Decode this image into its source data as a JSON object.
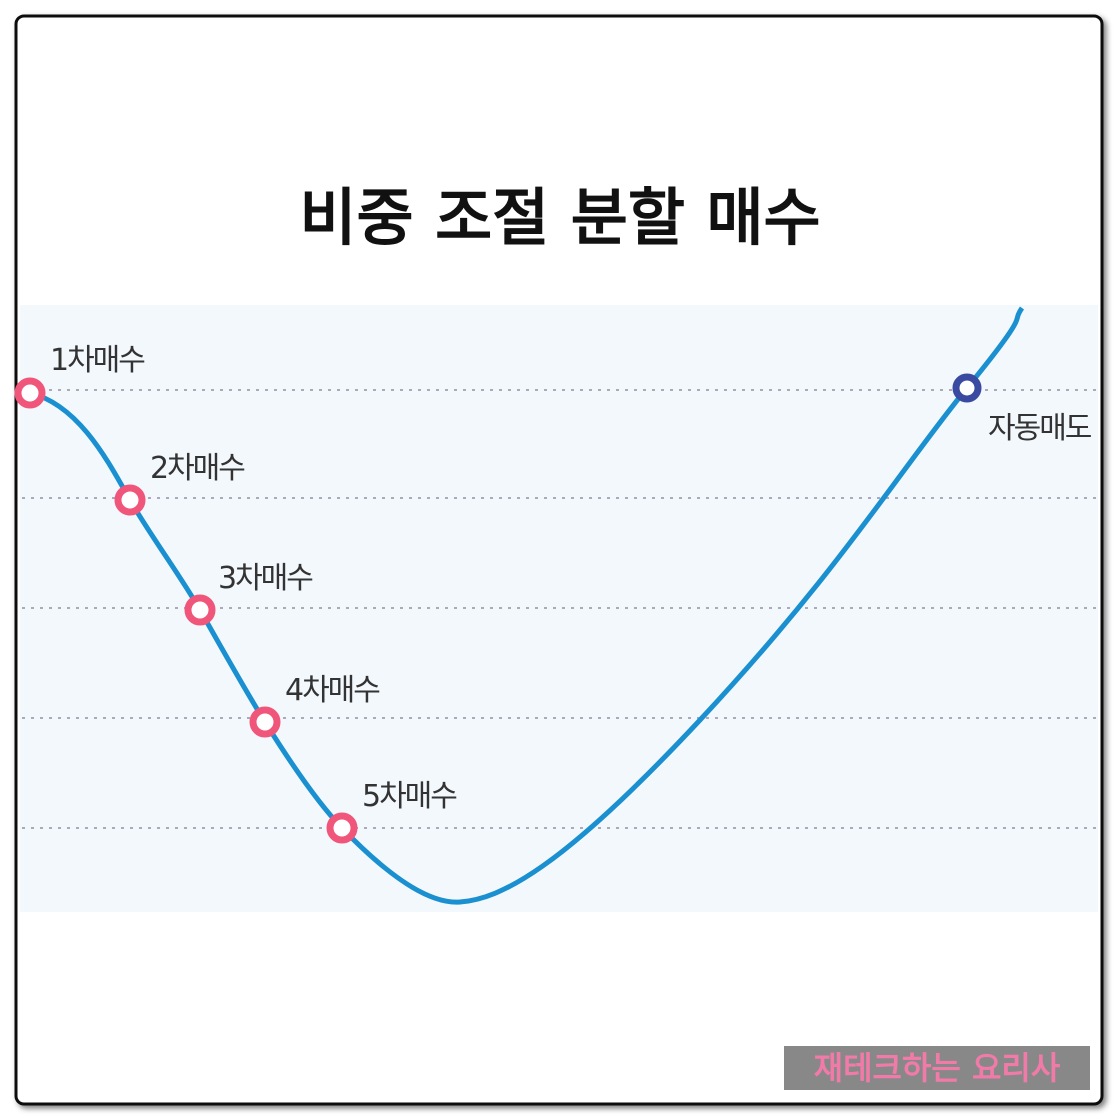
{
  "header": {
    "title": "비중 조절 분할 매수"
  },
  "nodes": [
    {
      "label": "1차매수"
    },
    {
      "label": "2차매수"
    },
    {
      "label": "3차매수"
    },
    {
      "label": "4차매수"
    },
    {
      "label": "5차매수"
    },
    {
      "label": "자동매도"
    }
  ],
  "footer": {
    "watermark": "재테크하는 요리사"
  }
}
